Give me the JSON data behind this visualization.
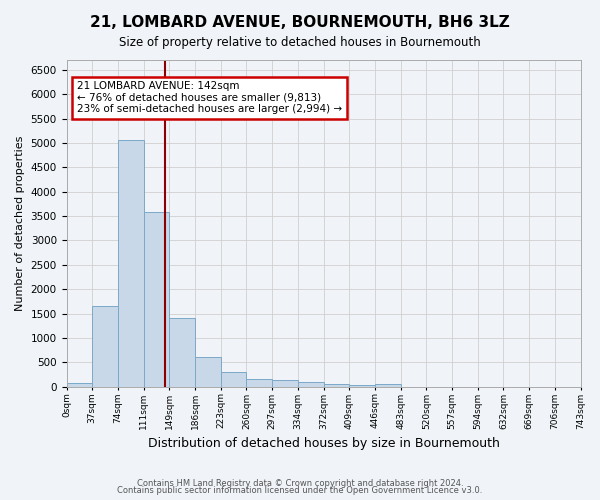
{
  "title": "21, LOMBARD AVENUE, BOURNEMOUTH, BH6 3LZ",
  "subtitle": "Size of property relative to detached houses in Bournemouth",
  "xlabel": "Distribution of detached houses by size in Bournemouth",
  "ylabel": "Number of detached properties",
  "footnote1": "Contains HM Land Registry data © Crown copyright and database right 2024.",
  "footnote2": "Contains public sector information licensed under the Open Government Licence v3.0.",
  "bin_labels": [
    "0sqm",
    "37sqm",
    "74sqm",
    "111sqm",
    "149sqm",
    "186sqm",
    "223sqm",
    "260sqm",
    "297sqm",
    "334sqm",
    "372sqm",
    "409sqm",
    "446sqm",
    "483sqm",
    "520sqm",
    "557sqm",
    "594sqm",
    "632sqm",
    "669sqm",
    "706sqm",
    "743sqm"
  ],
  "bar_values": [
    75,
    1650,
    5050,
    3580,
    1400,
    610,
    300,
    155,
    140,
    100,
    55,
    35,
    60,
    0,
    0,
    0,
    0,
    0,
    0,
    0
  ],
  "ylim": [
    0,
    6700
  ],
  "yticks": [
    0,
    500,
    1000,
    1500,
    2000,
    2500,
    3000,
    3500,
    4000,
    4500,
    5000,
    5500,
    6000,
    6500
  ],
  "bar_color": "#c8d8e8",
  "bar_edge_color": "#7ca9c8",
  "vline_color": "#8b0000",
  "vline_x": 3.84,
  "annotation_box_text": "21 LOMBARD AVENUE: 142sqm\n← 76% of detached houses are smaller (9,813)\n23% of semi-detached houses are larger (2,994) →",
  "annotation_box_color": "#ffffff",
  "annotation_box_edge_color": "#cc0000",
  "grid_color": "#d0d0d0",
  "background_color": "#f0f4f8"
}
